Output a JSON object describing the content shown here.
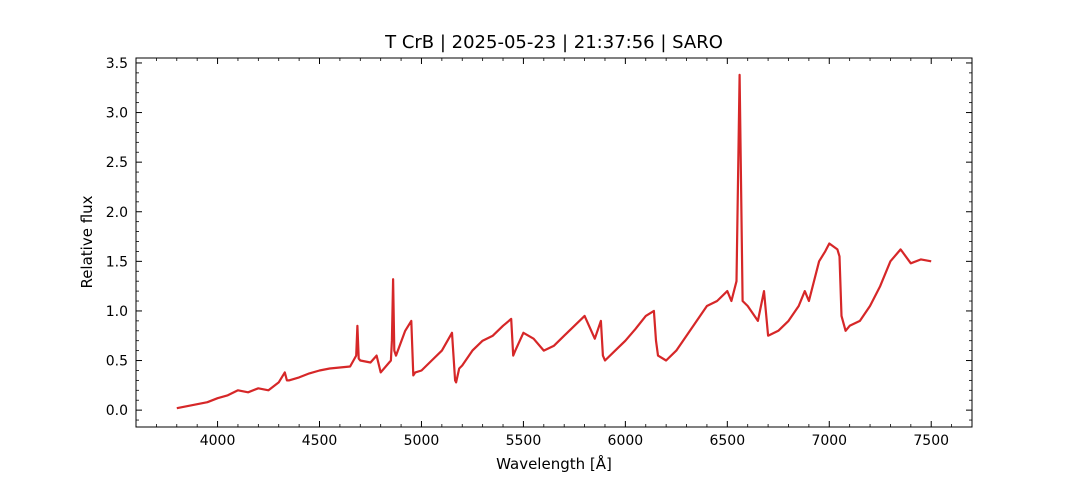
{
  "chart_data": {
    "type": "line",
    "title": "T CrB | 2025-05-23 | 21:37:56 | SARO",
    "xlabel": "Wavelength [Å]",
    "ylabel": "Relative flux",
    "xlim": [
      3600,
      7700
    ],
    "ylim": [
      -0.17,
      3.55
    ],
    "x_ticks": [
      4000,
      4500,
      5000,
      5500,
      6000,
      6500,
      7000,
      7500
    ],
    "x_tick_labels": [
      "4000",
      "4500",
      "5000",
      "5500",
      "6000",
      "6500",
      "7000",
      "7500"
    ],
    "y_ticks": [
      0.0,
      0.5,
      1.0,
      1.5,
      2.0,
      2.5,
      3.0,
      3.5
    ],
    "y_tick_labels": [
      "0.0",
      "0.5",
      "1.0",
      "1.5",
      "2.0",
      "2.5",
      "3.0",
      "3.5"
    ],
    "grid": false,
    "legend": "none",
    "series": [
      {
        "color": "#d62728",
        "x": [
          3800,
          3850,
          3900,
          3950,
          4000,
          4050,
          4100,
          4150,
          4200,
          4250,
          4300,
          4330,
          4340,
          4350,
          4400,
          4450,
          4500,
          4550,
          4600,
          4650,
          4680,
          4686,
          4692,
          4700,
          4750,
          4780,
          4800,
          4850,
          4855,
          4861,
          4867,
          4875,
          4920,
          4950,
          4960,
          4970,
          5000,
          5050,
          5100,
          5150,
          5165,
          5170,
          5185,
          5200,
          5250,
          5300,
          5350,
          5400,
          5440,
          5450,
          5460,
          5500,
          5550,
          5600,
          5650,
          5700,
          5750,
          5800,
          5850,
          5880,
          5890,
          5900,
          5950,
          6000,
          6050,
          6100,
          6140,
          6150,
          6160,
          6200,
          6250,
          6300,
          6350,
          6400,
          6450,
          6500,
          6520,
          6545,
          6560,
          6575,
          6600,
          6650,
          6680,
          6700,
          6750,
          6800,
          6850,
          6880,
          6900,
          6950,
          6980,
          7000,
          7040,
          7050,
          7060,
          7080,
          7100,
          7150,
          7200,
          7250,
          7300,
          7350,
          7400,
          7450,
          7500
        ],
        "y": [
          0.02,
          0.04,
          0.06,
          0.08,
          0.12,
          0.15,
          0.2,
          0.18,
          0.22,
          0.2,
          0.28,
          0.38,
          0.3,
          0.3,
          0.33,
          0.37,
          0.4,
          0.42,
          0.43,
          0.44,
          0.55,
          0.85,
          0.52,
          0.5,
          0.48,
          0.55,
          0.38,
          0.5,
          0.7,
          1.32,
          0.6,
          0.55,
          0.8,
          0.9,
          0.35,
          0.38,
          0.4,
          0.5,
          0.6,
          0.78,
          0.3,
          0.28,
          0.42,
          0.45,
          0.6,
          0.7,
          0.75,
          0.85,
          0.92,
          0.55,
          0.6,
          0.78,
          0.72,
          0.6,
          0.65,
          0.75,
          0.85,
          0.95,
          0.72,
          0.9,
          0.55,
          0.5,
          0.6,
          0.7,
          0.82,
          0.95,
          1.0,
          0.7,
          0.55,
          0.5,
          0.6,
          0.75,
          0.9,
          1.05,
          1.1,
          1.2,
          1.1,
          1.3,
          3.38,
          1.1,
          1.05,
          0.9,
          1.2,
          0.75,
          0.8,
          0.9,
          1.05,
          1.2,
          1.1,
          1.5,
          1.6,
          1.68,
          1.62,
          1.55,
          0.95,
          0.8,
          0.85,
          0.9,
          1.05,
          1.25,
          1.5,
          1.62,
          1.48,
          1.52,
          1.5
        ]
      }
    ]
  }
}
